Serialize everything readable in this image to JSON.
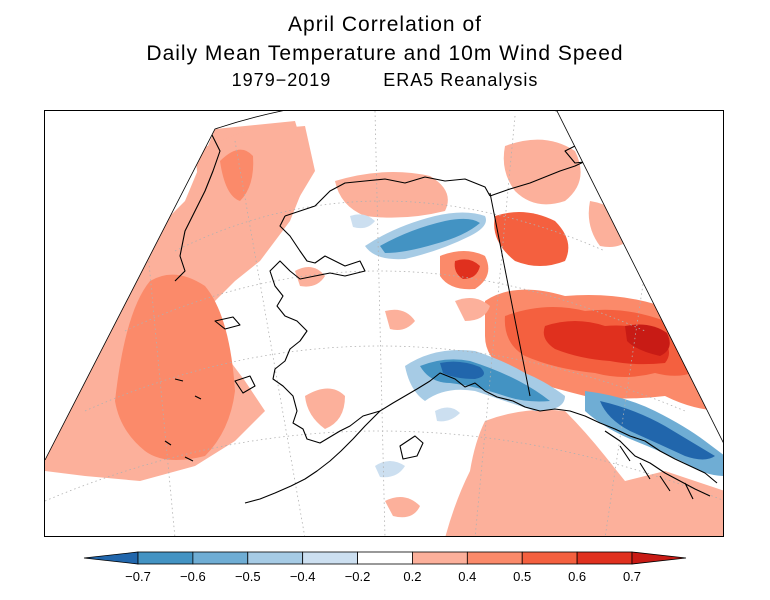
{
  "title": {
    "line1": "April Correlation of",
    "line2": "Daily Mean Temperature and 10m Wind Speed",
    "period": "1979−2019",
    "source": "ERA5 Reanalysis"
  },
  "colors": {
    "neg_07": "#2166ac",
    "neg_06": "#4393c3",
    "neg_05": "#92c5de",
    "neg_04": "#c6dbef",
    "neutral": "#ffffff",
    "pos_02": "#fcae91",
    "pos_04": "#fb8a6a",
    "pos_05": "#f4603f",
    "pos_06": "#e0301e",
    "pos_07": "#c81b15"
  },
  "colorbar": {
    "levels": [
      "−0.7",
      "−0.6",
      "−0.5",
      "−0.4",
      "−0.2",
      "0.2",
      "0.4",
      "0.5",
      "0.6",
      "0.7"
    ],
    "bins": [
      "#2166ac",
      "#4393c3",
      "#6fadd4",
      "#a6cbe5",
      "#ccdff0",
      "#ffffff",
      "#fcb09b",
      "#fb8a6a",
      "#f4603f",
      "#e0301e",
      "#c81b15"
    ]
  },
  "map": {
    "projection": "polar stereographic sector",
    "region": "Alaska",
    "variable": "correlation coefficient"
  }
}
